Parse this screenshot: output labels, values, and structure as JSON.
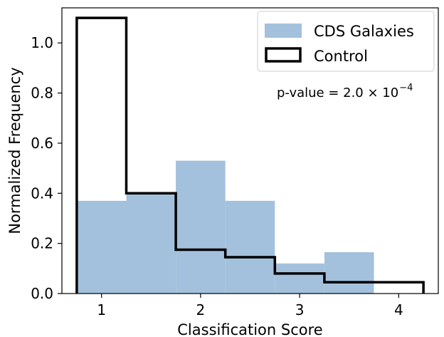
{
  "chart_data": {
    "type": "bar",
    "title": "",
    "xlabel": "Classification Score",
    "ylabel": "Normalized Frequency",
    "xlim": [
      0.6,
      4.4
    ],
    "ylim": [
      0,
      1.14
    ],
    "xticks": [
      1,
      2,
      3,
      4
    ],
    "yticks": [
      0.0,
      0.2,
      0.4,
      0.6,
      0.8,
      1.0
    ],
    "xtick_labels": [
      "1",
      "2",
      "3",
      "4"
    ],
    "ytick_labels": [
      "0.0",
      "0.2",
      "0.4",
      "0.6",
      "0.8",
      "1.0"
    ],
    "grid": false,
    "legend_position": "top-right",
    "bin_edges": [
      0.75,
      1.25,
      1.75,
      2.25,
      2.75,
      3.25,
      3.75,
      4.25
    ],
    "series": [
      {
        "name": "CDS Galaxies",
        "style": "filled",
        "color": "#a3c1dc",
        "values": [
          0.37,
          0.4,
          0.53,
          0.37,
          0.12,
          0.165,
          0.0
        ]
      },
      {
        "name": "Control",
        "style": "step-outline",
        "color": "#000000",
        "values": [
          1.1,
          0.4,
          0.175,
          0.145,
          0.08,
          0.045,
          0.045
        ]
      }
    ],
    "annotation": {
      "base": "p-value = 2.0 × 10",
      "exponent": "−4"
    }
  }
}
